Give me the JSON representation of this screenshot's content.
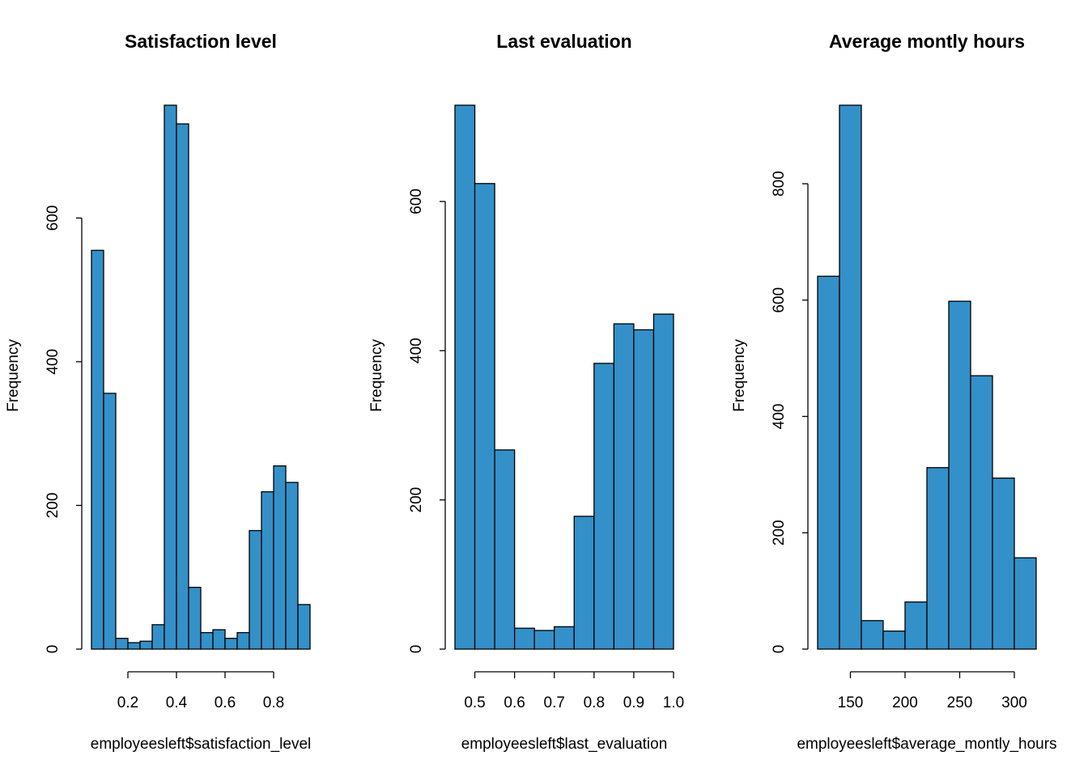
{
  "chart_data": [
    {
      "type": "histogram",
      "title": "Satisfaction level",
      "xlabel": "employeesleft$satisfaction_level",
      "ylabel": "Frequency",
      "color": "#3490c8",
      "bins": [
        0.05,
        0.1,
        0.15,
        0.2,
        0.25,
        0.3,
        0.35,
        0.4,
        0.45,
        0.5,
        0.55,
        0.6,
        0.65,
        0.7,
        0.75,
        0.8,
        0.85,
        0.9,
        0.95
      ],
      "values": [
        555,
        356,
        15,
        9,
        11,
        34,
        757,
        731,
        86,
        23,
        27,
        15,
        23,
        165,
        219,
        255,
        232,
        62
      ],
      "xlim": [
        0.05,
        0.95
      ],
      "ylim": [
        0,
        757
      ],
      "xticks": [
        0.2,
        0.4,
        0.6,
        0.8
      ],
      "yticks": [
        0,
        200,
        400,
        600
      ]
    },
    {
      "type": "histogram",
      "title": "Last evaluation",
      "xlabel": "employeesleft$last_evaluation",
      "ylabel": "Frequency",
      "color": "#3490c8",
      "bins": [
        0.45,
        0.5,
        0.55,
        0.6,
        0.65,
        0.7,
        0.75,
        0.8,
        0.85,
        0.9,
        0.95,
        1.0
      ],
      "values": [
        729,
        624,
        267,
        28,
        25,
        30,
        178,
        383,
        436,
        428,
        449
      ],
      "xlim": [
        0.45,
        1.0
      ],
      "ylim": [
        0,
        729
      ],
      "xticks": [
        0.5,
        0.6,
        0.7,
        0.8,
        0.9,
        {
          "value": 1,
          "label": "1.0"
        }
      ],
      "yticks": [
        0,
        200,
        400,
        600
      ]
    },
    {
      "type": "histogram",
      "title": "Average montly hours",
      "xlabel": "employeesleft$average_montly_hours",
      "ylabel": "Frequency",
      "color": "#3490c8",
      "bins": [
        120,
        140,
        160,
        180,
        200,
        220,
        240,
        260,
        280,
        300,
        320
      ],
      "values": [
        641,
        935,
        49,
        31,
        81,
        312,
        598,
        470,
        294,
        157
      ],
      "xlim": [
        120,
        320
      ],
      "ylim": [
        0,
        935
      ],
      "xticks": [
        150,
        200,
        250,
        300
      ],
      "yticks": [
        0,
        200,
        400,
        600,
        800
      ]
    }
  ]
}
